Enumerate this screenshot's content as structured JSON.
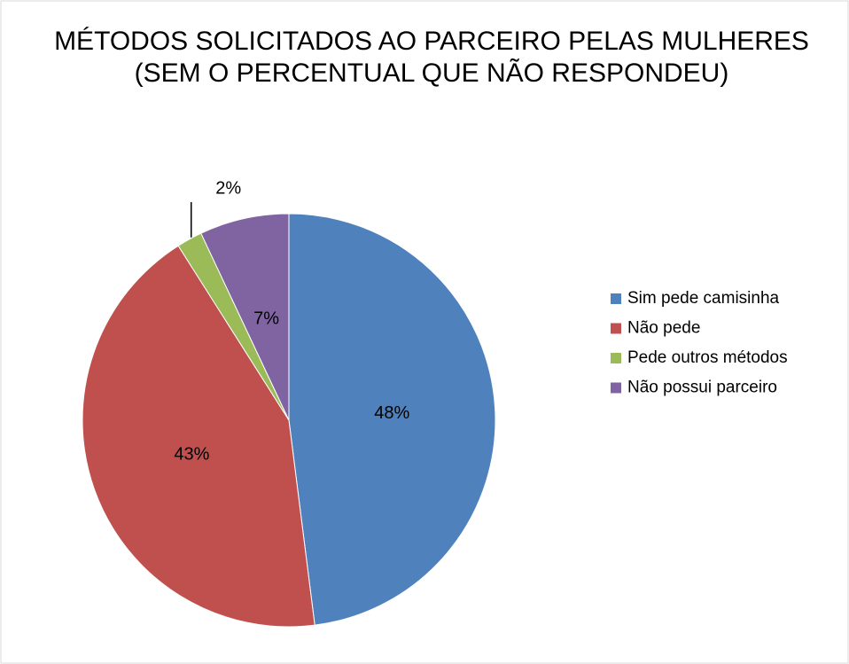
{
  "chart_data": {
    "type": "pie",
    "title": [
      "MÉTODOS SOLICITADOS AO PARCEIRO PELAS MULHERES",
      "(SEM O PERCENTUAL QUE NÃO RESPONDEU)"
    ],
    "categories": [
      "Sim pede camisinha",
      "Não pede",
      "Pede outros métodos",
      "Não possui parceiro"
    ],
    "values": [
      48,
      43,
      2,
      7
    ],
    "value_labels": [
      "48%",
      "43%",
      "2%",
      "7%"
    ],
    "colors": [
      "#4f81bd",
      "#c0504d",
      "#9bbb59",
      "#8064a2"
    ],
    "legend": "right"
  }
}
